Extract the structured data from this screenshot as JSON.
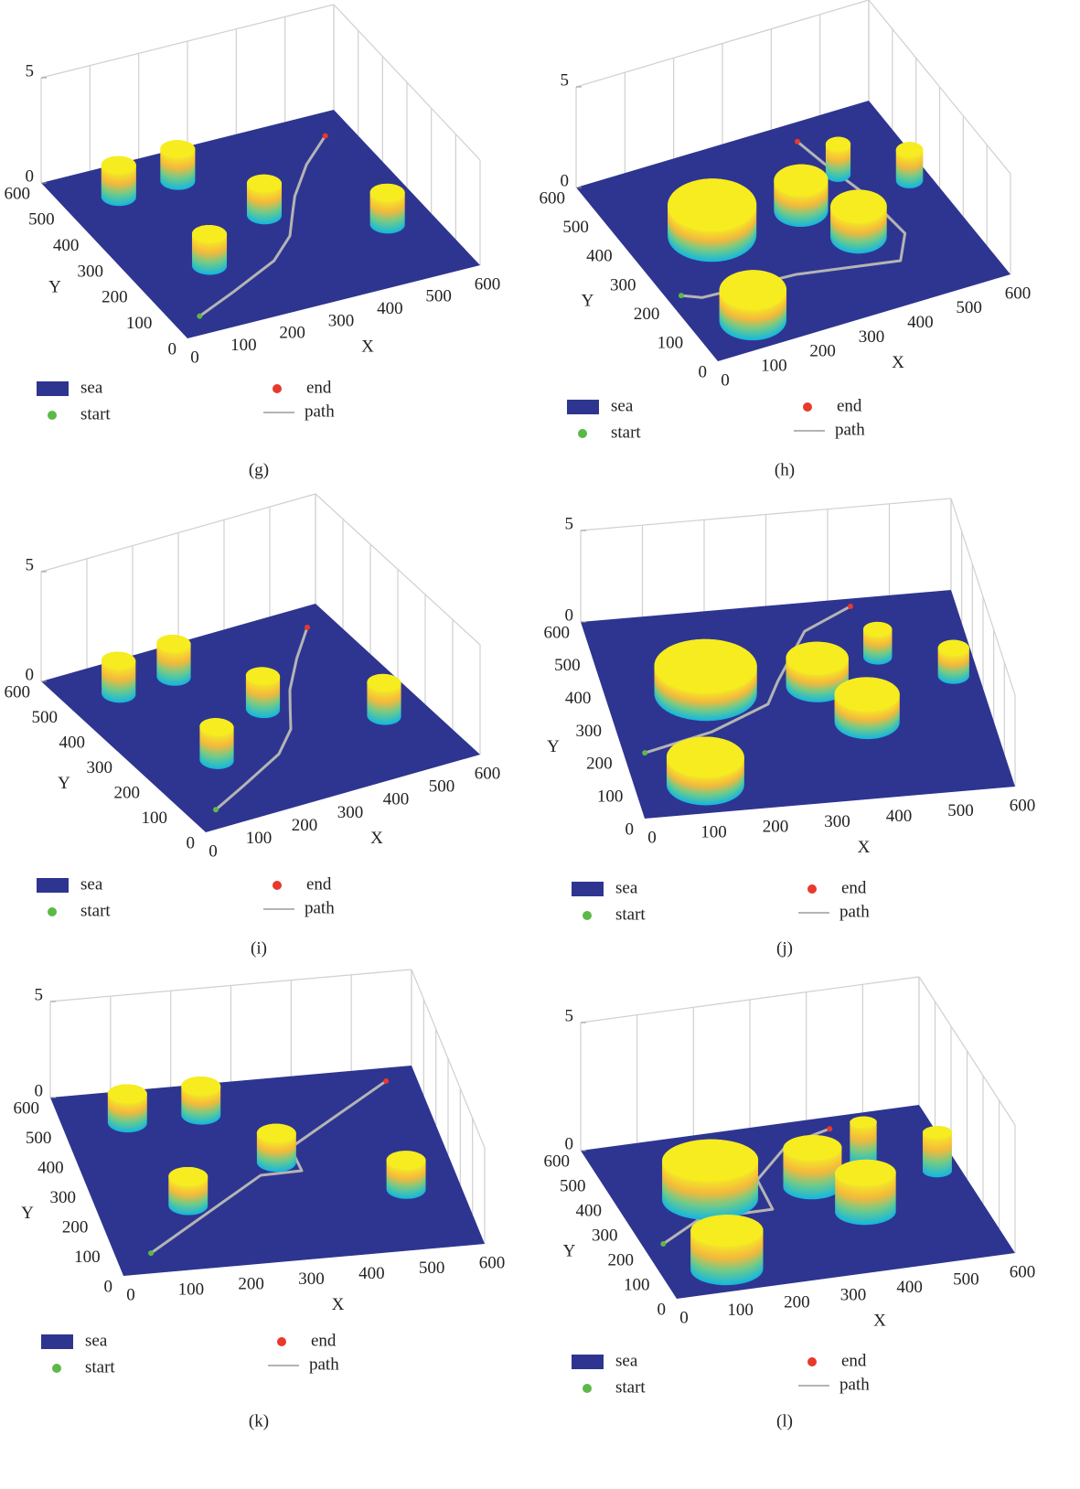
{
  "chart_data": [
    {
      "type": "surface3d",
      "caption": "(g)",
      "xlabel": "X",
      "ylabel": "Y",
      "xlim": [
        0,
        600
      ],
      "ylim": [
        0,
        600
      ],
      "zlim": [
        0,
        5
      ],
      "xticks": [
        0,
        100,
        200,
        300,
        400,
        500,
        600
      ],
      "yticks": [
        0,
        100,
        200,
        300,
        400,
        500,
        600
      ],
      "zticks": [
        0,
        5
      ],
      "surface": {
        "name": "sea",
        "color": "#2e3590"
      },
      "start": {
        "name": "start",
        "color": "#5cb947",
        "x": 55,
        "y": 60
      },
      "end": {
        "name": "end",
        "color": "#e8392b",
        "x": 545,
        "y": 525
      },
      "path": {
        "name": "path",
        "color": "#b4b4b4",
        "x": [
          55,
          150,
          265,
          330,
          367,
          400,
          469,
          545
        ],
        "y": [
          60,
          110,
          175,
          240,
          304,
          360,
          450,
          525
        ]
      },
      "obstacles": {
        "x": [
          230,
          107,
          320,
          510,
          150
        ],
        "y": [
          500,
          496,
          325,
          200,
          210
        ],
        "r": [
          32,
          32,
          32,
          32,
          32
        ],
        "h": [
          1.5,
          1.5,
          1.5,
          1.5,
          1.5
        ]
      }
    },
    {
      "type": "surface3d",
      "caption": "(h)",
      "xlabel": "X",
      "ylabel": "Y",
      "xlim": [
        0,
        600
      ],
      "ylim": [
        0,
        600
      ],
      "zlim": [
        0,
        5
      ],
      "xticks": [
        0,
        100,
        200,
        300,
        400,
        500,
        600
      ],
      "yticks": [
        0,
        100,
        200,
        300,
        400,
        500,
        600
      ],
      "zticks": [
        0,
        5
      ],
      "surface": {
        "name": "sea",
        "color": "#2e3590"
      },
      "start": {
        "name": "start",
        "color": "#5cb947",
        "x": 28,
        "y": 213
      },
      "end": {
        "name": "end",
        "color": "#e8392b",
        "x": 427,
        "y": 545
      },
      "path": {
        "name": "path",
        "color": "#b4b4b4",
        "x": [
          28,
          60,
          245,
          437,
          481,
          470,
          441,
          427
        ],
        "y": [
          213,
          190,
          177,
          129,
          201,
          333,
          465,
          545
        ]
      },
      "obstacles": {
        "x": [
          450,
          560,
          340,
          160,
          400,
          113
        ],
        "y": [
          420,
          345,
          350,
          355,
          230,
          85
        ],
        "r": [
          23,
          25,
          50,
          82,
          52,
          62
        ],
        "h": [
          1.5,
          1.5,
          1.5,
          1.5,
          1.5,
          1.5
        ]
      }
    },
    {
      "type": "surface3d",
      "caption": "(i)",
      "xlabel": "X",
      "ylabel": "Y",
      "xlim": [
        0,
        600
      ],
      "ylim": [
        0,
        600
      ],
      "zlim": [
        0,
        5
      ],
      "xticks": [
        0,
        100,
        200,
        300,
        400,
        500,
        600
      ],
      "yticks": [
        0,
        100,
        200,
        300,
        400,
        500,
        600
      ],
      "zticks": [
        0,
        5
      ],
      "surface": {
        "name": "sea",
        "color": "#2e3590"
      },
      "start": {
        "name": "start",
        "color": "#5cb947",
        "x": 58,
        "y": 60
      },
      "end": {
        "name": "end",
        "color": "#e8392b",
        "x": 543,
        "y": 535
      },
      "path": {
        "name": "path",
        "color": "#b4b4b4",
        "x": [
          58,
          150,
          265,
          330,
          367,
          400,
          469,
          543
        ],
        "y": [
          60,
          110,
          175,
          240,
          304,
          360,
          450,
          535
        ]
      },
      "obstacles": {
        "x": [
          230,
          107,
          320,
          510,
          150
        ],
        "y": [
          500,
          496,
          325,
          200,
          210
        ],
        "r": [
          32,
          32,
          32,
          32,
          32
        ],
        "h": [
          1.5,
          1.5,
          1.5,
          1.5,
          1.5
        ]
      }
    },
    {
      "type": "surface3d",
      "caption": "(j)",
      "xlabel": "X",
      "ylabel": "Y",
      "xlim": [
        0,
        600
      ],
      "ylim": [
        0,
        600
      ],
      "zlim": [
        0,
        5
      ],
      "xticks": [
        0,
        100,
        200,
        300,
        400,
        500,
        600
      ],
      "yticks": [
        0,
        100,
        200,
        300,
        400,
        500,
        600
      ],
      "zticks": [
        0,
        5
      ],
      "surface": {
        "name": "sea",
        "color": "#2e3590"
      },
      "start": {
        "name": "start",
        "color": "#5cb947",
        "x": 34,
        "y": 195
      },
      "end": {
        "name": "end",
        "color": "#e8392b",
        "x": 433,
        "y": 577
      },
      "path": {
        "name": "path",
        "color": "#b4b4b4",
        "x": [
          34,
          150,
          253,
          280,
          348,
          433
        ],
        "y": [
          195,
          240,
          308,
          373,
          515,
          577
        ]
      },
      "obstacles": {
        "x": [
          450,
          560,
          340,
          160,
          400,
          113
        ],
        "y": [
          420,
          345,
          350,
          355,
          230,
          85
        ],
        "r": [
          23,
          25,
          50,
          82,
          52,
          62
        ],
        "h": [
          1.5,
          1.5,
          1.5,
          1.5,
          1.5,
          1.5
        ]
      }
    },
    {
      "type": "surface3d",
      "caption": "(k)",
      "xlabel": "X",
      "ylabel": "Y",
      "xlim": [
        0,
        600
      ],
      "ylim": [
        0,
        600
      ],
      "zlim": [
        0,
        5
      ],
      "xticks": [
        0,
        100,
        200,
        300,
        400,
        500,
        600
      ],
      "yticks": [
        0,
        100,
        200,
        300,
        400,
        500,
        600
      ],
      "zticks": [
        0,
        5
      ],
      "surface": {
        "name": "sea",
        "color": "#2e3590"
      },
      "start": {
        "name": "start",
        "color": "#5cb947",
        "x": 59,
        "y": 66
      },
      "end": {
        "name": "end",
        "color": "#e8392b",
        "x": 549,
        "y": 557
      },
      "path": {
        "name": "path",
        "color": "#b4b4b4",
        "x": [
          59,
          286,
          355,
          352,
          549
        ],
        "y": [
          66,
          287,
          290,
          368,
          557
        ]
      },
      "obstacles": {
        "x": [
          230,
          107,
          320,
          510,
          150
        ],
        "y": [
          500,
          496,
          325,
          200,
          210
        ],
        "r": [
          32,
          32,
          32,
          32,
          32
        ],
        "h": [
          1.5,
          1.5,
          1.5,
          1.5,
          1.5
        ]
      }
    },
    {
      "type": "surface3d",
      "caption": "(l)",
      "xlabel": "X",
      "ylabel": "Y",
      "xlim": [
        0,
        600
      ],
      "ylim": [
        0,
        600
      ],
      "zlim": [
        0,
        5
      ],
      "xticks": [
        0,
        100,
        200,
        300,
        400,
        500,
        600
      ],
      "yticks": [
        0,
        100,
        200,
        300,
        400,
        500,
        600
      ],
      "zticks": [
        0,
        5
      ],
      "surface": {
        "name": "sea",
        "color": "#2e3590"
      },
      "start": {
        "name": "start",
        "color": "#5cb947",
        "x": 36,
        "y": 211
      },
      "end": {
        "name": "end",
        "color": "#e8392b",
        "x": 429,
        "y": 556
      },
      "path": {
        "name": "path",
        "color": "#b4b4b4",
        "x": [
          36,
          121,
          251,
          257,
          342,
          429
        ],
        "y": [
          211,
          285,
          285,
          402,
          517,
          556
        ]
      },
      "obstacles": {
        "x": [
          450,
          560,
          340,
          160,
          400,
          113
        ],
        "y": [
          420,
          345,
          350,
          355,
          230,
          85
        ],
        "r": [
          23,
          25,
          50,
          82,
          52,
          62
        ],
        "h": [
          1.5,
          1.5,
          1.5,
          1.5,
          1.5,
          1.5
        ]
      }
    }
  ]
}
